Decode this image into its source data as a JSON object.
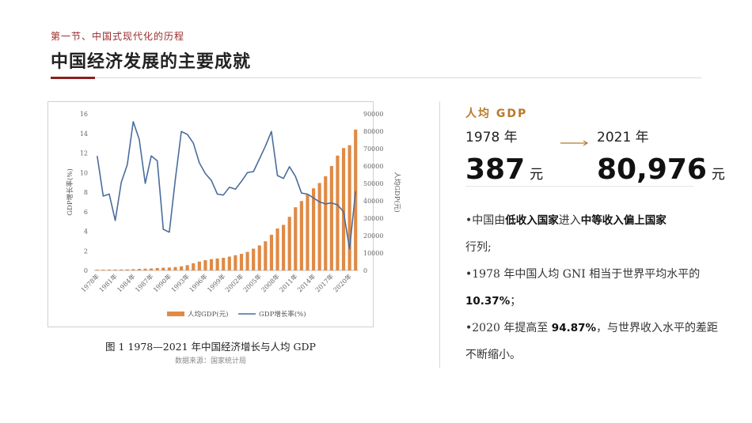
{
  "header": {
    "section": "第一节、中国式现代化的历程",
    "title": "中国经济发展的主要成就"
  },
  "figure": {
    "caption": "图 1 1978—2021 年中国经济增长与人均 GDP",
    "source": "数据来源：国家统计局"
  },
  "gdp_panel": {
    "label": "人均 GDP",
    "year_from": "1978 年",
    "year_to": "2021 年",
    "value_from": "387",
    "value_to": "80,976",
    "unit": "元"
  },
  "bullets": {
    "b1_pre": "•中国由",
    "b1_k1": "低收入国家",
    "b1_mid": "进入",
    "b1_k2": "中等收入偏上国家",
    "b1_post": "行列;",
    "b2_pre": "•1978 年中国人均 GNI 相当于世界平均水平的 ",
    "b2_k": "10.37%",
    "b2_post": "；",
    "b3_pre": "•2020 年提高至 ",
    "b3_k": "94.87%",
    "b3_post": "，与世界收入水平的差距不断缩小。"
  },
  "chart_data": {
    "type": "bar+line",
    "x": [
      1978,
      1979,
      1980,
      1981,
      1982,
      1983,
      1984,
      1985,
      1986,
      1987,
      1988,
      1989,
      1990,
      1991,
      1992,
      1993,
      1994,
      1995,
      1996,
      1997,
      1998,
      1999,
      2000,
      2001,
      2002,
      2003,
      2004,
      2005,
      2006,
      2007,
      2008,
      2009,
      2010,
      2011,
      2012,
      2013,
      2014,
      2015,
      2016,
      2017,
      2018,
      2019,
      2020,
      2021
    ],
    "x_tick_labels": [
      "1978年",
      "1981年",
      "1984年",
      "1987年",
      "1990年",
      "1993年",
      "1996年",
      "1999年",
      "2002年",
      "2005年",
      "2008年",
      "2011年",
      "2014年",
      "2017年",
      "2020年"
    ],
    "series": [
      {
        "name": "人均GDP(元)",
        "type": "bar",
        "axis": "right",
        "color": "#e08a45",
        "values": [
          387,
          423,
          468,
          497,
          533,
          592,
          700,
          866,
          983,
          1123,
          1378,
          1536,
          1663,
          1912,
          2334,
          3027,
          4081,
          5091,
          5898,
          6481,
          6860,
          7229,
          7942,
          8717,
          9506,
          10666,
          12487,
          14368,
          16738,
          20494,
          24100,
          26180,
          30808,
          36302,
          39874,
          43684,
          47173,
          50237,
          54139,
          60014,
          66006,
          70328,
          72000,
          80976
        ]
      },
      {
        "name": "GDP增长率(%)",
        "type": "line",
        "axis": "left",
        "color": "#4a6d9c",
        "values": [
          11.7,
          7.6,
          7.8,
          5.1,
          9.0,
          10.8,
          15.2,
          13.4,
          8.9,
          11.7,
          11.2,
          4.2,
          3.9,
          9.3,
          14.2,
          13.9,
          13.0,
          11.0,
          9.9,
          9.2,
          7.8,
          7.7,
          8.5,
          8.3,
          9.1,
          10.0,
          10.1,
          11.4,
          12.7,
          14.2,
          9.7,
          9.4,
          10.6,
          9.6,
          7.9,
          7.8,
          7.4,
          7.0,
          6.8,
          6.9,
          6.7,
          6.0,
          2.2,
          8.1
        ]
      }
    ],
    "y_left": {
      "label": "GDP增长率(%)",
      "ticks": [
        0,
        2,
        4,
        6,
        8,
        10,
        12,
        14,
        16
      ],
      "range": [
        0,
        16
      ]
    },
    "y_right": {
      "label": "人均GDP(元)",
      "ticks": [
        0,
        10000,
        20000,
        30000,
        40000,
        50000,
        60000,
        70000,
        80000,
        90000
      ],
      "range": [
        0,
        90000
      ]
    },
    "legend": {
      "placement": "bottom",
      "items": [
        "人均GDP(元)",
        "GDP增长率(%)"
      ]
    }
  }
}
